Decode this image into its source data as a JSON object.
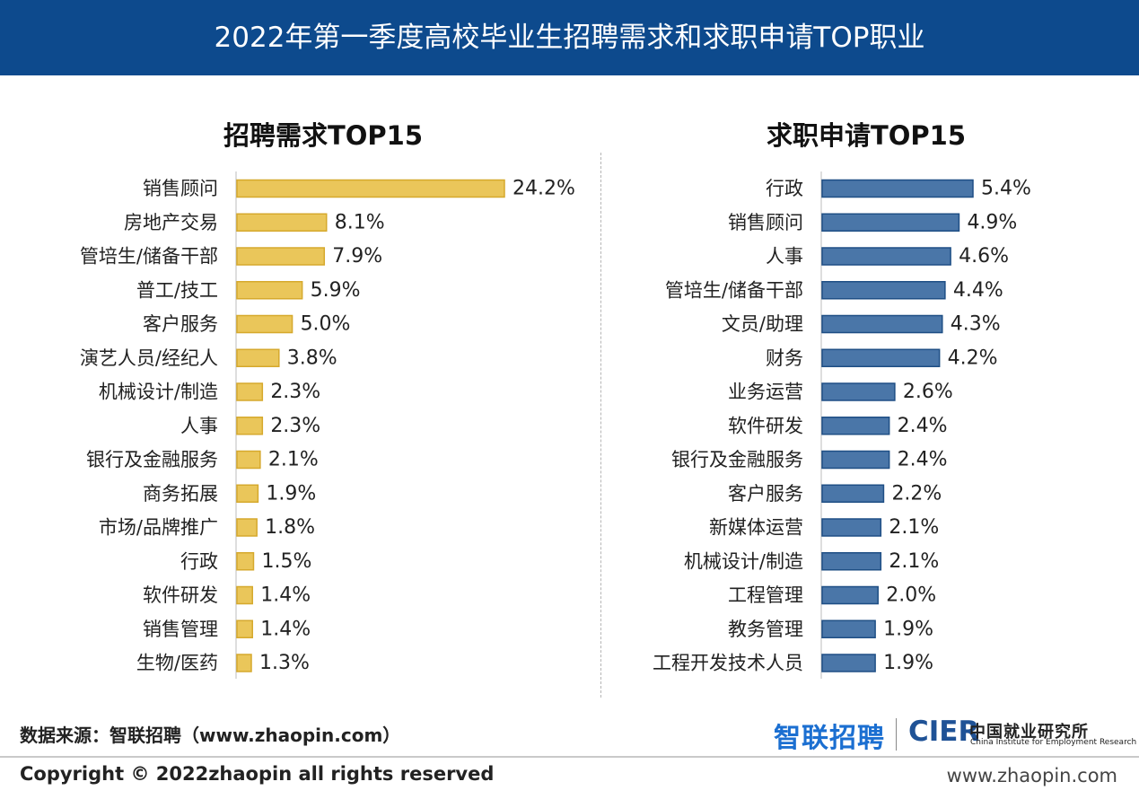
{
  "header": {
    "title": "2022年第一季度高校毕业生招聘需求和求职申请TOP职业"
  },
  "colors": {
    "header_bg": "#0d4a8d",
    "left_bar": "#eac65a",
    "left_stroke": "#d6a92d",
    "right_bar": "#4a76a8",
    "right_stroke": "#1f4f85"
  },
  "chart_data": [
    {
      "type": "bar",
      "orientation": "horizontal",
      "title": "招聘需求TOP15",
      "categories": [
        "销售顾问",
        "房地产交易",
        "管培生/储备干部",
        "普工/技工",
        "客户服务",
        "演艺人员/经纪人",
        "机械设计/制造",
        "人事",
        "银行及金融服务",
        "商务拓展",
        "市场/品牌推广",
        "行政",
        "软件研发",
        "销售管理",
        "生物/医药"
      ],
      "values": [
        24.2,
        8.1,
        7.9,
        5.9,
        5.0,
        3.8,
        2.3,
        2.3,
        2.1,
        1.9,
        1.8,
        1.5,
        1.4,
        1.4,
        1.3
      ],
      "labels": [
        "24.2%",
        "8.1%",
        "7.9%",
        "5.9%",
        "5.0%",
        "3.8%",
        "2.3%",
        "2.3%",
        "2.1%",
        "1.9%",
        "1.8%",
        "1.5%",
        "1.4%",
        "1.4%",
        "1.3%"
      ],
      "unit": "%",
      "xlim": [
        0,
        24.2
      ]
    },
    {
      "type": "bar",
      "orientation": "horizontal",
      "title": "求职申请TOP15",
      "categories": [
        "行政",
        "销售顾问",
        "人事",
        "管培生/储备干部",
        "文员/助理",
        "财务",
        "业务运营",
        "软件研发",
        "银行及金融服务",
        "客户服务",
        "新媒体运营",
        "机械设计/制造",
        "工程管理",
        "教务管理",
        "工程开发技术人员"
      ],
      "values": [
        5.4,
        4.9,
        4.6,
        4.4,
        4.3,
        4.2,
        2.6,
        2.4,
        2.4,
        2.2,
        2.1,
        2.1,
        2.0,
        1.9,
        1.9
      ],
      "labels": [
        "5.4%",
        "4.9%",
        "4.6%",
        "4.4%",
        "4.3%",
        "4.2%",
        "2.6%",
        "2.4%",
        "2.4%",
        "2.2%",
        "2.1%",
        "2.1%",
        "2.0%",
        "1.9%",
        "1.9%"
      ],
      "unit": "%",
      "xlim": [
        0,
        5.4
      ]
    }
  ],
  "footer": {
    "source": "数据来源：智联招聘（www.zhaopin.com）",
    "logo_zhaopin": "智联招聘",
    "logo_cier": "CIER",
    "logo_cier_cn": "中国就业研究所",
    "logo_cier_en": "China Institute for Employment Research",
    "copyright": "Copyright ©  2022zhaopin all rights reserved",
    "website": "www.zhaopin.com"
  }
}
